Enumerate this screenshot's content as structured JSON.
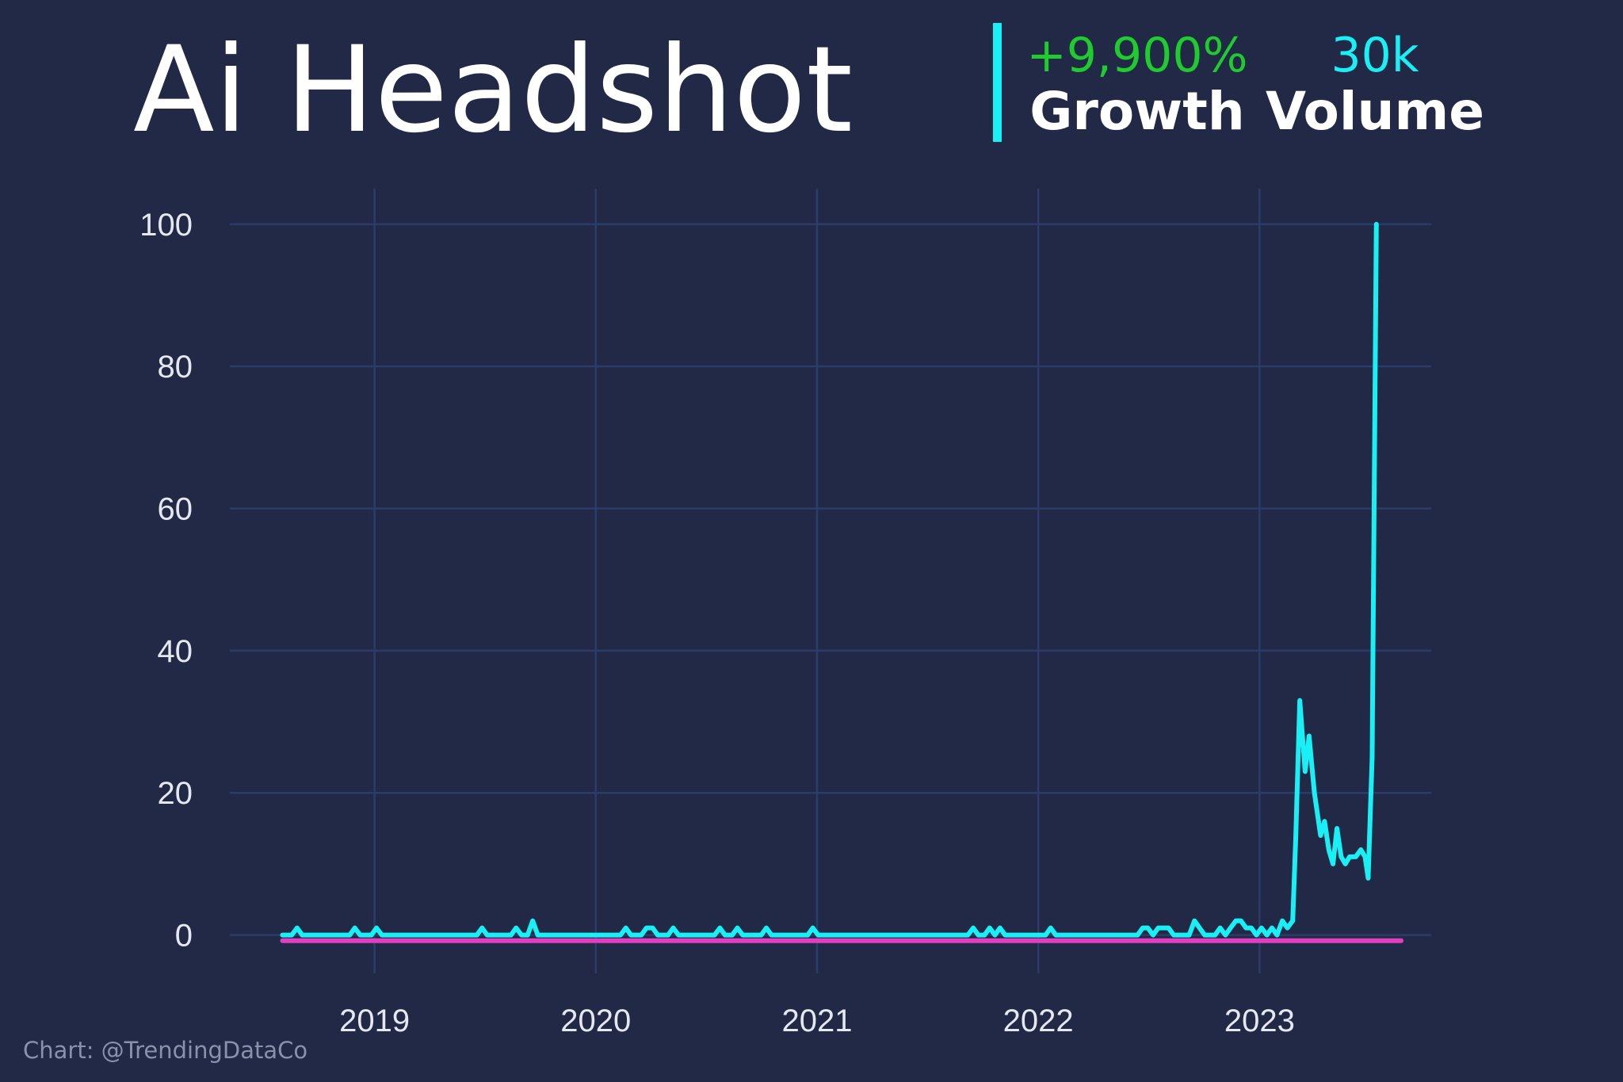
{
  "chart_data": {
    "type": "line",
    "title": "Ai Headshot",
    "stats": [
      {
        "value": "+9,900%",
        "label": "Growth",
        "color": "#1fcc2e"
      },
      {
        "value": "30k",
        "label": "Volume",
        "color": "#19f0f5"
      }
    ],
    "credit": "Chart: @TrendingDataCo",
    "grid": true,
    "xlim": [
      2018.346,
      2023.776
    ],
    "ylim": [
      -5.4,
      105
    ],
    "xticks": [
      2019,
      2020,
      2021,
      2022,
      2023
    ],
    "yticks": [
      0,
      20,
      40,
      60,
      80,
      100
    ],
    "series": [
      {
        "color": "#19f0f5",
        "x": [
          2018.584,
          2018.626,
          2018.65,
          2018.673,
          2018.888,
          2018.911,
          2018.935,
          2018.986,
          2019.009,
          2019.033,
          2019.463,
          2019.486,
          2019.509,
          2019.617,
          2019.64,
          2019.664,
          2019.692,
          2019.715,
          2019.738,
          2020.112,
          2020.136,
          2020.159,
          2020.206,
          2020.229,
          2020.257,
          2020.28,
          2020.327,
          2020.35,
          2020.374,
          2020.537,
          2020.561,
          2020.584,
          2020.617,
          2020.64,
          2020.664,
          2020.748,
          2020.771,
          2020.794,
          2020.958,
          2020.981,
          2021.005,
          2021.682,
          2021.706,
          2021.729,
          2021.757,
          2021.78,
          2021.804,
          2021.827,
          2021.85,
          2022.033,
          2022.056,
          2022.079,
          2022.449,
          2022.472,
          2022.495,
          2022.519,
          2022.542,
          2022.589,
          2022.612,
          2022.682,
          2022.706,
          2022.729,
          2022.752,
          2022.799,
          2022.822,
          2022.846,
          2022.869,
          2022.893,
          2022.916,
          2022.939,
          2022.963,
          2022.986,
          2023.009,
          2023.033,
          2023.056,
          2023.079,
          2023.103,
          2023.126,
          2023.15,
          2023.164,
          2023.182,
          2023.206,
          2023.224,
          2023.248,
          2023.262,
          2023.276,
          2023.294,
          2023.313,
          2023.332,
          2023.35,
          2023.369,
          2023.388,
          2023.407,
          2023.435,
          2023.458,
          2023.477,
          2023.491,
          2023.509,
          2023.528
        ],
        "values": [
          0,
          0,
          1,
          0,
          0,
          1,
          0,
          0,
          1,
          0,
          0,
          1,
          0,
          0,
          1,
          0,
          0,
          2,
          0,
          0,
          1,
          0,
          0,
          1,
          1,
          0,
          0,
          1,
          0,
          0,
          1,
          0,
          0,
          1,
          0,
          0,
          1,
          0,
          0,
          1,
          0,
          0,
          1,
          0,
          0,
          1,
          0,
          1,
          0,
          0,
          1,
          0,
          0,
          1,
          1,
          0,
          1,
          1,
          0,
          0,
          2,
          1,
          0,
          0,
          1,
          0,
          1,
          2,
          2,
          1,
          1,
          0,
          1,
          0,
          1,
          0,
          2,
          1,
          2,
          14,
          33,
          23,
          28,
          20,
          17,
          14,
          16,
          12,
          10,
          15,
          11,
          10,
          11,
          11,
          12,
          11,
          8,
          25,
          100
        ]
      },
      {
        "color": "#e040c0",
        "x": [
          2018.584,
          2023.64
        ],
        "values": [
          -0.8,
          -0.8
        ]
      }
    ]
  }
}
